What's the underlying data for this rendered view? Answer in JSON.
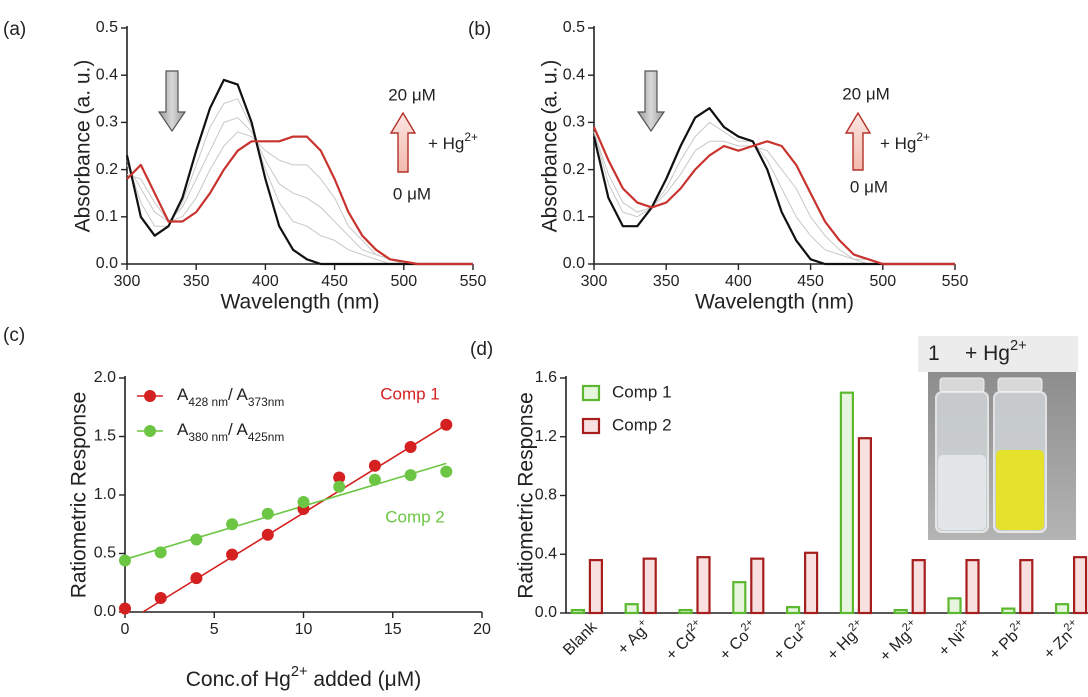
{
  "chart_data": [
    {
      "type": "line",
      "panel_label": "(a)",
      "x_label": "Wavelength (nm)",
      "y_label": "Absorbance (a. u.)",
      "x": [
        300,
        310,
        320,
        330,
        340,
        350,
        360,
        370,
        380,
        390,
        400,
        410,
        420,
        430,
        440,
        450,
        460,
        470,
        480,
        490,
        500,
        510,
        520,
        530,
        540,
        550
      ],
      "series": [
        {
          "color": "#c8c8c8",
          "values": [
            0.22,
            0.13,
            0.08,
            0.08,
            0.13,
            0.21,
            0.29,
            0.34,
            0.35,
            0.29,
            0.2,
            0.13,
            0.09,
            0.08,
            0.06,
            0.05,
            0.03,
            0.02,
            0.01,
            0,
            0,
            0,
            0,
            0,
            0,
            0
          ]
        },
        {
          "color": "#c8c8c8",
          "values": [
            0.21,
            0.16,
            0.11,
            0.09,
            0.12,
            0.18,
            0.24,
            0.3,
            0.31,
            0.28,
            0.22,
            0.17,
            0.15,
            0.14,
            0.12,
            0.09,
            0.06,
            0.03,
            0.02,
            0.01,
            0,
            0,
            0,
            0,
            0,
            0
          ]
        },
        {
          "color": "#c8c8c8",
          "values": [
            0.19,
            0.18,
            0.13,
            0.09,
            0.1,
            0.14,
            0.2,
            0.25,
            0.28,
            0.27,
            0.24,
            0.22,
            0.21,
            0.21,
            0.18,
            0.14,
            0.08,
            0.05,
            0.02,
            0.01,
            0,
            0,
            0,
            0,
            0,
            0
          ]
        },
        {
          "color": "#111111",
          "values": [
            0.23,
            0.1,
            0.06,
            0.08,
            0.14,
            0.24,
            0.33,
            0.39,
            0.38,
            0.3,
            0.18,
            0.08,
            0.03,
            0.01,
            0,
            0,
            0,
            0,
            0,
            0,
            0,
            0,
            0,
            0,
            0,
            0
          ]
        },
        {
          "color": "#c8332e",
          "values": [
            0.18,
            0.21,
            0.15,
            0.09,
            0.09,
            0.11,
            0.15,
            0.2,
            0.24,
            0.26,
            0.26,
            0.26,
            0.27,
            0.27,
            0.24,
            0.18,
            0.11,
            0.06,
            0.03,
            0.01,
            0.005,
            0,
            0,
            0,
            0,
            0
          ]
        }
      ],
      "xlim": [
        300,
        550
      ],
      "xticks": [
        300,
        350,
        400,
        450,
        500,
        550
      ],
      "ylim": [
        0,
        0.5
      ],
      "yticks": [
        {
          "value": 0,
          "label": "0.0"
        },
        0.1,
        0.2,
        0.3,
        0.4,
        0.5
      ],
      "annotations": {
        "top": "20 μM",
        "bottom": "0 μM",
        "reagent": "+ Hg",
        "reagent_sup": "2+"
      }
    },
    {
      "type": "line",
      "panel_label": "(b)",
      "x_label": "Wavelength (nm)",
      "y_label": "Absorbance (a. u.)",
      "x": [
        300,
        310,
        320,
        330,
        340,
        350,
        360,
        370,
        380,
        390,
        400,
        410,
        420,
        430,
        440,
        450,
        460,
        470,
        480,
        490,
        500,
        510,
        520,
        530,
        540,
        550
      ],
      "series": [
        {
          "color": "#c8c8c8",
          "values": [
            0.28,
            0.17,
            0.11,
            0.1,
            0.12,
            0.16,
            0.22,
            0.27,
            0.3,
            0.28,
            0.26,
            0.26,
            0.22,
            0.16,
            0.1,
            0.06,
            0.03,
            0.02,
            0.01,
            0,
            0,
            0,
            0,
            0,
            0,
            0
          ]
        },
        {
          "color": "#c8c8c8",
          "values": [
            0.28,
            0.19,
            0.13,
            0.11,
            0.12,
            0.15,
            0.19,
            0.24,
            0.26,
            0.26,
            0.25,
            0.25,
            0.24,
            0.2,
            0.16,
            0.1,
            0.06,
            0.03,
            0.01,
            0.01,
            0,
            0,
            0,
            0,
            0,
            0
          ]
        },
        {
          "color": "#111111",
          "values": [
            0.27,
            0.14,
            0.08,
            0.08,
            0.12,
            0.18,
            0.25,
            0.31,
            0.33,
            0.29,
            0.27,
            0.26,
            0.2,
            0.11,
            0.05,
            0.01,
            0,
            0,
            0,
            0,
            0,
            0,
            0,
            0,
            0,
            0
          ]
        },
        {
          "color": "#c8332e",
          "values": [
            0.29,
            0.22,
            0.16,
            0.13,
            0.12,
            0.13,
            0.16,
            0.2,
            0.23,
            0.25,
            0.24,
            0.25,
            0.26,
            0.25,
            0.21,
            0.15,
            0.09,
            0.05,
            0.02,
            0.01,
            0,
            0,
            0,
            0,
            0,
            0
          ]
        }
      ],
      "xlim": [
        300,
        550
      ],
      "xticks": [
        300,
        350,
        400,
        450,
        500,
        550
      ],
      "ylim": [
        0,
        0.5
      ],
      "yticks": [
        {
          "value": 0,
          "label": "0.0"
        },
        0.1,
        0.2,
        0.3,
        0.4,
        0.5
      ],
      "annotations": {
        "top": "20 μM",
        "bottom": "0 μM",
        "reagent": "+ Hg",
        "reagent_sup": "2+"
      }
    },
    {
      "type": "scatter",
      "panel_label": "(c)",
      "y_label": "Ratiometric Response",
      "x_label": "Conc.of Hg",
      "x_label_sup": "2+",
      "x_label_end": " added (μM)",
      "x": [
        0,
        2,
        4,
        6,
        8,
        10,
        12,
        14,
        16,
        18
      ],
      "series": [
        {
          "name_parts": [
            "A",
            "428 nm",
            "/ A",
            "373nm"
          ],
          "label": "Comp 1",
          "color": "#d42020",
          "values": [
            0.03,
            0.12,
            0.29,
            0.49,
            0.66,
            0.88,
            1.15,
            1.25,
            1.41,
            1.6
          ],
          "fit": {
            "x": [
              1,
              18
            ],
            "values": [
              0,
              1.6
            ]
          }
        },
        {
          "name_parts": [
            "A",
            "380 nm",
            "/ A",
            "425nm"
          ],
          "label": "Comp 2",
          "color": "#6cc644",
          "values": [
            0.44,
            0.51,
            0.62,
            0.75,
            0.84,
            0.94,
            1.07,
            1.13,
            1.17,
            1.2
          ],
          "fit": {
            "x": [
              0,
              18
            ],
            "values": [
              0.45,
              1.27
            ]
          }
        }
      ],
      "xlim": [
        0,
        20
      ],
      "xticks": [
        0,
        5,
        10,
        15,
        20
      ],
      "ylim": [
        0,
        2
      ],
      "yticks": [
        {
          "value": 0,
          "label": "0.0"
        },
        0.5,
        {
          "value": 1,
          "label": "1.0"
        },
        1.5,
        {
          "value": 2,
          "label": "2.0"
        }
      ],
      "legend": "upper left"
    },
    {
      "type": "bar",
      "panel_label": "(d)",
      "y_label": "Ratiometric Response",
      "categories": [
        "Blank",
        "+ Ag",
        "+ Cd",
        "+ Co",
        "+ Cu",
        "+ Hg",
        "+ Mg",
        "+ Ni",
        "+ Pb",
        "+ Zn"
      ],
      "category_superscripts": [
        null,
        "+",
        "2+",
        "2+",
        "2+",
        "2+",
        "2+",
        "2+",
        "2+",
        "2+"
      ],
      "series": [
        {
          "name": "Comp 1",
          "color": "#5cb82e",
          "fill": "#e8f5de",
          "values": [
            0.02,
            0.06,
            0.02,
            0.21,
            0.04,
            1.5,
            0.02,
            0.1,
            0.03,
            0.06
          ]
        },
        {
          "name": "Comp 2",
          "color": "#a51d1d",
          "fill": "#f9e0e0",
          "values": [
            0.36,
            0.37,
            0.38,
            0.37,
            0.41,
            1.19,
            0.36,
            0.36,
            0.36,
            0.38
          ]
        }
      ],
      "ylim": [
        0,
        1.6
      ],
      "yticks": [
        {
          "value": 0,
          "label": "0.0"
        },
        0.4,
        0.8,
        1.2,
        1.6
      ],
      "legend": "upper left",
      "inset": {
        "label": "1",
        "reagent": "+ Hg",
        "reagent_sup": "2+"
      }
    }
  ]
}
